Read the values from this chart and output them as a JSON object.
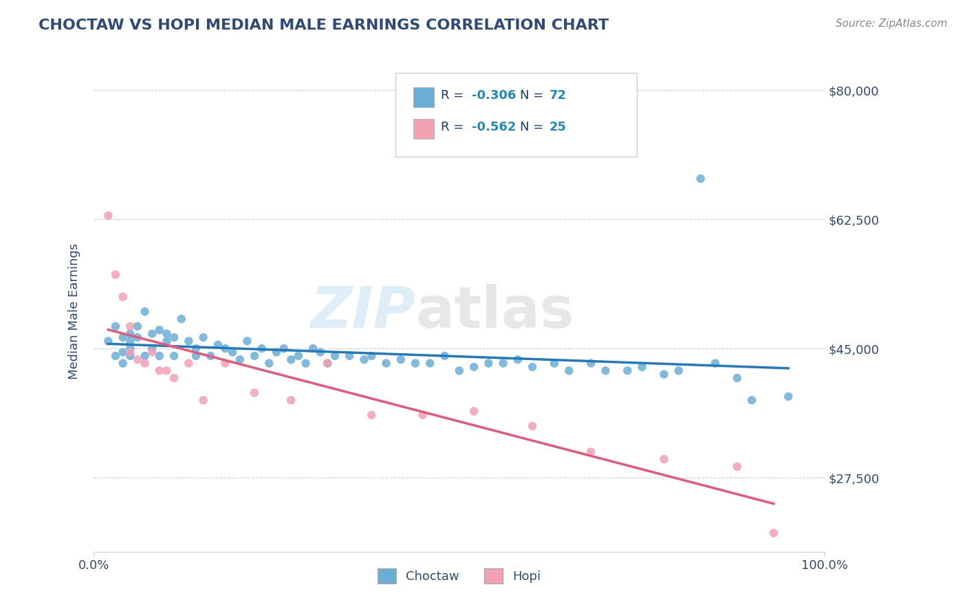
{
  "title": "CHOCTAW VS HOPI MEDIAN MALE EARNINGS CORRELATION CHART",
  "source_text": "Source: ZipAtlas.com",
  "ylabel": "Median Male Earnings",
  "xlim": [
    0.0,
    1.0
  ],
  "ylim": [
    17500,
    82500
  ],
  "yticks": [
    27500,
    45000,
    62500,
    80000
  ],
  "ytick_labels": [
    "$27,500",
    "$45,000",
    "$62,500",
    "$80,000"
  ],
  "xtick_labels": [
    "0.0%",
    "100.0%"
  ],
  "choctaw_r": -0.306,
  "choctaw_n": 72,
  "hopi_r": -0.562,
  "hopi_n": 25,
  "choctaw_color": "#6aaed6",
  "hopi_color": "#f4a0b5",
  "choctaw_line_color": "#1f7abf",
  "hopi_line_color": "#e8567a",
  "background_color": "#ffffff",
  "grid_color": "#cccccc",
  "title_color": "#2e4a7a",
  "axis_label_color": "#2e4a7a",
  "tick_label_color": "#2e4a7a",
  "legend_text_color": "#1a3a6e",
  "legend_value_color": "#1a8abf",
  "watermark": "ZIPatlas",
  "choctaw_x": [
    0.02,
    0.03,
    0.03,
    0.04,
    0.04,
    0.04,
    0.05,
    0.05,
    0.05,
    0.05,
    0.06,
    0.06,
    0.07,
    0.07,
    0.08,
    0.08,
    0.09,
    0.09,
    0.1,
    0.1,
    0.11,
    0.11,
    0.12,
    0.13,
    0.14,
    0.14,
    0.15,
    0.16,
    0.17,
    0.18,
    0.19,
    0.2,
    0.21,
    0.22,
    0.23,
    0.24,
    0.25,
    0.26,
    0.27,
    0.28,
    0.29,
    0.3,
    0.31,
    0.32,
    0.33,
    0.35,
    0.37,
    0.38,
    0.4,
    0.42,
    0.44,
    0.46,
    0.48,
    0.5,
    0.52,
    0.54,
    0.56,
    0.58,
    0.6,
    0.63,
    0.65,
    0.68,
    0.7,
    0.73,
    0.75,
    0.78,
    0.8,
    0.83,
    0.85,
    0.88,
    0.9,
    0.95
  ],
  "choctaw_y": [
    46000,
    48000,
    44000,
    44500,
    46500,
    43000,
    47000,
    46000,
    45000,
    44000,
    48000,
    46500,
    50000,
    44000,
    47000,
    45000,
    47500,
    44000,
    47000,
    46000,
    46500,
    44000,
    49000,
    46000,
    45000,
    44000,
    46500,
    44000,
    45500,
    45000,
    44500,
    43500,
    46000,
    44000,
    45000,
    43000,
    44500,
    45000,
    43500,
    44000,
    43000,
    45000,
    44500,
    43000,
    44000,
    44000,
    43500,
    44000,
    43000,
    43500,
    43000,
    43000,
    44000,
    42000,
    42500,
    43000,
    43000,
    43500,
    42500,
    43000,
    42000,
    43000,
    42000,
    42000,
    42500,
    41500,
    42000,
    68000,
    43000,
    41000,
    38000,
    38500
  ],
  "hopi_x": [
    0.02,
    0.03,
    0.04,
    0.05,
    0.05,
    0.06,
    0.07,
    0.08,
    0.09,
    0.1,
    0.11,
    0.13,
    0.15,
    0.18,
    0.22,
    0.27,
    0.32,
    0.38,
    0.45,
    0.52,
    0.6,
    0.68,
    0.78,
    0.88,
    0.93
  ],
  "hopi_y": [
    63000,
    55000,
    52000,
    48000,
    44500,
    43500,
    43000,
    44500,
    42000,
    42000,
    41000,
    43000,
    38000,
    43000,
    39000,
    38000,
    43000,
    36000,
    36000,
    36500,
    34500,
    31000,
    30000,
    29000,
    20000
  ]
}
